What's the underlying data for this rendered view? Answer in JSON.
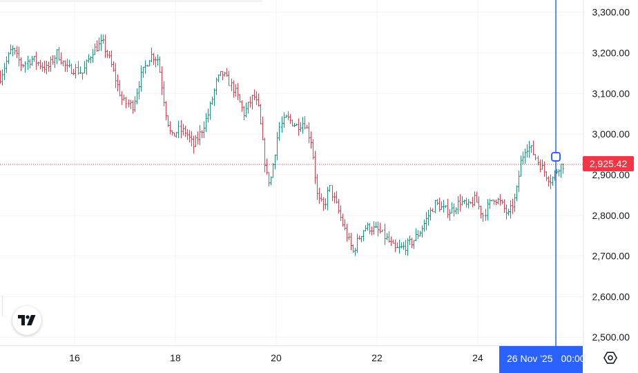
{
  "chart_data": {
    "type": "candlestick",
    "x_tick_labels": [
      "16",
      "18",
      "20",
      "22",
      "24"
    ],
    "x_tick_days": [
      16,
      18,
      20,
      22,
      24
    ],
    "y_ticks": [
      2500,
      2600,
      2700,
      2800,
      2900,
      3000,
      3100,
      3200,
      3300
    ],
    "y_tick_labels": [
      "2,500.00",
      "2,600.00",
      "2,700.00",
      "2,800.00",
      "2,900.00",
      "3,000.00",
      "3,100.00",
      "3,200.00",
      "3,300.00"
    ],
    "ylim": [
      2480,
      3330
    ],
    "xlim_days": [
      14.52,
      25.7
    ],
    "grid": true,
    "colors": {
      "up": "#089981",
      "down": "#f23645",
      "crosshair": "#2962ff",
      "grid": "#f0f3fa"
    },
    "last_price": 2925.42,
    "last_price_label": "2,925.42",
    "crosshair_day": 25.55,
    "crosshair_price": 2944,
    "crosshair_date_label": "26 Nov '25",
    "crosshair_time_label": "00:00",
    "candle_interval": "1h",
    "anchor_path": [
      [
        14.52,
        3140
      ],
      [
        14.75,
        3210
      ],
      [
        14.95,
        3170
      ],
      [
        15.15,
        3185
      ],
      [
        15.45,
        3160
      ],
      [
        15.65,
        3200
      ],
      [
        15.85,
        3160
      ],
      [
        16.0,
        3160
      ],
      [
        16.15,
        3150
      ],
      [
        16.35,
        3205
      ],
      [
        16.55,
        3225
      ],
      [
        16.7,
        3180
      ],
      [
        16.85,
        3120
      ],
      [
        16.95,
        3080
      ],
      [
        17.15,
        3070
      ],
      [
        17.3,
        3140
      ],
      [
        17.5,
        3195
      ],
      [
        17.65,
        3185
      ],
      [
        17.8,
        3060
      ],
      [
        17.92,
        2990
      ],
      [
        18.05,
        3010
      ],
      [
        18.2,
        3005
      ],
      [
        18.35,
        2970
      ],
      [
        18.5,
        3005
      ],
      [
        18.65,
        3050
      ],
      [
        18.82,
        3130
      ],
      [
        18.92,
        3150
      ],
      [
        19.05,
        3130
      ],
      [
        19.2,
        3100
      ],
      [
        19.35,
        3050
      ],
      [
        19.55,
        3095
      ],
      [
        19.65,
        3060
      ],
      [
        19.8,
        2900
      ],
      [
        19.88,
        2880
      ],
      [
        20.05,
        3015
      ],
      [
        20.2,
        3040
      ],
      [
        20.4,
        3020
      ],
      [
        20.55,
        3030
      ],
      [
        20.7,
        2980
      ],
      [
        20.82,
        2840
      ],
      [
        20.95,
        2820
      ],
      [
        21.05,
        2870
      ],
      [
        21.2,
        2820
      ],
      [
        21.35,
        2765
      ],
      [
        21.52,
        2710
      ],
      [
        21.62,
        2740
      ],
      [
        21.75,
        2770
      ],
      [
        21.85,
        2770
      ],
      [
        22.05,
        2760
      ],
      [
        22.2,
        2740
      ],
      [
        22.35,
        2715
      ],
      [
        22.5,
        2720
      ],
      [
        22.7,
        2735
      ],
      [
        22.85,
        2760
      ],
      [
        22.98,
        2790
      ],
      [
        23.15,
        2830
      ],
      [
        23.3,
        2815
      ],
      [
        23.45,
        2810
      ],
      [
        23.65,
        2835
      ],
      [
        23.8,
        2820
      ],
      [
        23.95,
        2840
      ],
      [
        24.1,
        2800
      ],
      [
        24.3,
        2845
      ],
      [
        24.45,
        2830
      ],
      [
        24.6,
        2800
      ],
      [
        24.75,
        2845
      ],
      [
        24.85,
        2930
      ],
      [
        24.95,
        2970
      ],
      [
        25.05,
        2965
      ],
      [
        25.2,
        2930
      ],
      [
        25.35,
        2900
      ],
      [
        25.45,
        2885
      ],
      [
        25.6,
        2920
      ],
      [
        25.7,
        2925
      ]
    ]
  }
}
